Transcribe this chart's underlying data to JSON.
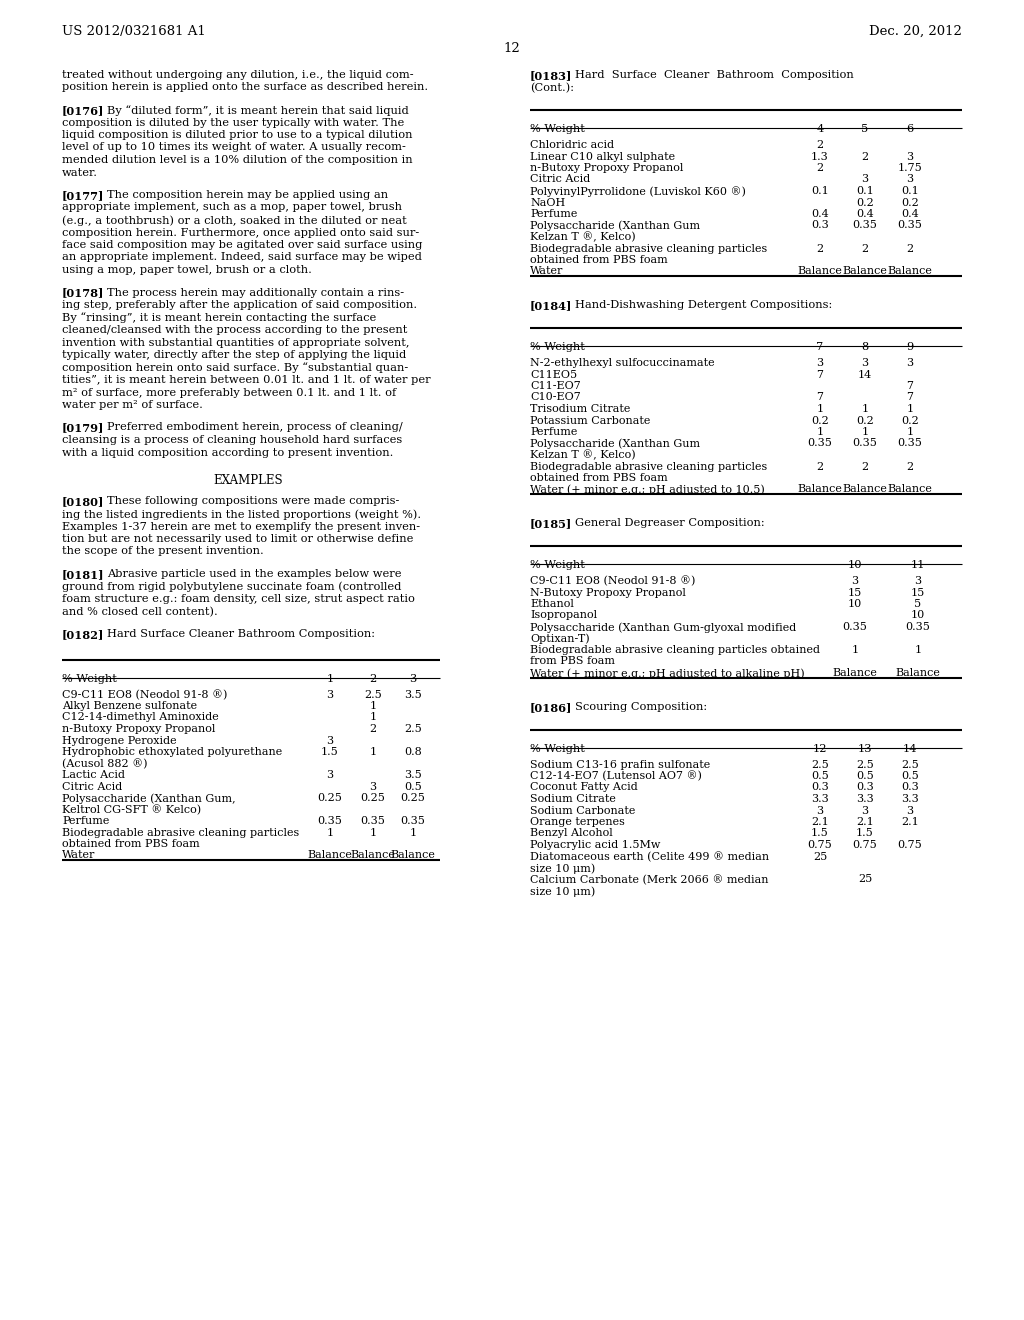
{
  "header_left": "US 2012/0321681 A1",
  "header_right": "Dec. 20, 2012",
  "page_number": "12",
  "background_color": "#ffffff",
  "table1_rows": [
    [
      "C9-C11 EO8 (Neodol 91-8 ®)",
      "3",
      "2.5",
      "3.5"
    ],
    [
      "Alkyl Benzene sulfonate",
      "",
      "1",
      ""
    ],
    [
      "C12-14-dimethyl Aminoxide",
      "",
      "1",
      ""
    ],
    [
      "n-Butoxy Propoxy Propanol",
      "",
      "2",
      "2.5"
    ],
    [
      "Hydrogene Peroxide",
      "3",
      "",
      ""
    ],
    [
      "Hydrophobic ethoxylated polyurethane",
      "1.5",
      "1",
      "0.8"
    ],
    [
      "(Acusol 882 ®)",
      "",
      "",
      ""
    ],
    [
      "Lactic Acid",
      "3",
      "",
      "3.5"
    ],
    [
      "Citric Acid",
      "",
      "3",
      "0.5"
    ],
    [
      "Polysaccharide (Xanthan Gum,",
      "0.25",
      "0.25",
      "0.25"
    ],
    [
      "Keltrol CG-SFT ® Kelco)",
      "",
      "",
      ""
    ],
    [
      "Perfume",
      "0.35",
      "0.35",
      "0.35"
    ],
    [
      "Biodegradable abrasive cleaning particles",
      "1",
      "1",
      "1"
    ],
    [
      "obtained from PBS foam",
      "",
      "",
      ""
    ],
    [
      "Water",
      "Balance",
      "Balance",
      "Balance"
    ]
  ],
  "table2_rows": [
    [
      "Chloridric acid",
      "2",
      "",
      ""
    ],
    [
      "Linear C10 alkyl sulphate",
      "1.3",
      "2",
      "3"
    ],
    [
      "n-Butoxy Propoxy Propanol",
      "2",
      "",
      "1.75"
    ],
    [
      "Citric Acid",
      "",
      "3",
      "3"
    ],
    [
      "PolyvinylPyrrolidone (Luviskol K60 ®)",
      "0.1",
      "0.1",
      "0.1"
    ],
    [
      "NaOH",
      "",
      "0.2",
      "0.2"
    ],
    [
      "Perfume",
      "0.4",
      "0.4",
      "0.4"
    ],
    [
      "Polysaccharide (Xanthan Gum",
      "0.3",
      "0.35",
      "0.35"
    ],
    [
      "Kelzan T ®, Kelco)",
      "",
      "",
      ""
    ],
    [
      "Biodegradable abrasive cleaning particles",
      "2",
      "2",
      "2"
    ],
    [
      "obtained from PBS foam",
      "",
      "",
      ""
    ],
    [
      "Water",
      "Balance",
      "Balance",
      "Balance"
    ]
  ],
  "table3_rows": [
    [
      "N-2-ethylhexyl sulfocuccinamate",
      "3",
      "3",
      "3"
    ],
    [
      "C11EO5",
      "7",
      "14",
      ""
    ],
    [
      "C11-EO7",
      "",
      "",
      "7"
    ],
    [
      "C10-EO7",
      "7",
      "",
      "7"
    ],
    [
      "Trisodium Citrate",
      "1",
      "1",
      "1"
    ],
    [
      "Potassium Carbonate",
      "0.2",
      "0.2",
      "0.2"
    ],
    [
      "Perfume",
      "1",
      "1",
      "1"
    ],
    [
      "Polysaccharide (Xanthan Gum",
      "0.35",
      "0.35",
      "0.35"
    ],
    [
      "Kelzan T ®, Kelco)",
      "",
      "",
      ""
    ],
    [
      "Biodegradable abrasive cleaning particles",
      "2",
      "2",
      "2"
    ],
    [
      "obtained from PBS foam",
      "",
      "",
      ""
    ],
    [
      "Water (+ minor e.g.; pH adjusted to 10.5)",
      "Balance",
      "Balance",
      "Balance"
    ]
  ],
  "table4_rows": [
    [
      "C9-C11 EO8 (Neodol 91-8 ®)",
      "3",
      "3"
    ],
    [
      "N-Butoxy Propoxy Propanol",
      "15",
      "15"
    ],
    [
      "Ethanol",
      "10",
      "5"
    ],
    [
      "Isopropanol",
      "",
      "10"
    ],
    [
      "Polysaccharide (Xanthan Gum-glyoxal modified",
      "0.35",
      "0.35"
    ],
    [
      "Optixan-T)",
      "",
      ""
    ],
    [
      "Biodegradable abrasive cleaning particles obtained",
      "1",
      "1"
    ],
    [
      "from PBS foam",
      "",
      ""
    ],
    [
      "Water (+ minor e.g.; pH adjusted to alkaline pH)",
      "Balance",
      "Balance"
    ]
  ],
  "table5_rows": [
    [
      "Sodium C13-16 prafin sulfonate",
      "2.5",
      "2.5",
      "2.5"
    ],
    [
      "C12-14-EO7 (Lutensol AO7 ®)",
      "0.5",
      "0.5",
      "0.5"
    ],
    [
      "Coconut Fatty Acid",
      "0.3",
      "0.3",
      "0.3"
    ],
    [
      "Sodium Citrate",
      "3.3",
      "3.3",
      "3.3"
    ],
    [
      "Sodium Carbonate",
      "3",
      "3",
      "3"
    ],
    [
      "Orange terpenes",
      "2.1",
      "2.1",
      "2.1"
    ],
    [
      "Benzyl Alcohol",
      "1.5",
      "1.5",
      ""
    ],
    [
      "Polyacrylic acid 1.5Mw",
      "0.75",
      "0.75",
      "0.75"
    ],
    [
      "Diatomaceous earth (Celite 499 ® median",
      "25",
      "",
      ""
    ],
    [
      "size 10 μm)",
      "",
      "",
      ""
    ],
    [
      "Calcium Carbonate (Merk 2066 ® median",
      "",
      "25",
      ""
    ],
    [
      "size 10 μm)",
      "",
      "",
      ""
    ]
  ]
}
